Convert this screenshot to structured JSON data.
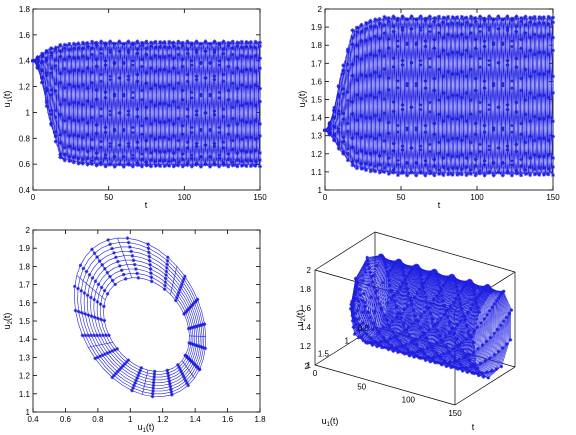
{
  "series_color": "#1f1fe0",
  "marker": "star",
  "chart_data": [
    {
      "type": "line",
      "panel": "top-left",
      "xlabel": "t",
      "ylabel": "u1(t)",
      "ylabel_main": "u",
      "ylabel_sub": "1",
      "ylabel_suffix": "(t)",
      "xlim": [
        0,
        150
      ],
      "ylim": [
        0.4,
        1.8
      ],
      "xticks": [
        "0",
        "50",
        "100",
        "150"
      ],
      "yticks": [
        "0.4",
        "0.6",
        "0.8",
        "1",
        "1.2",
        "1.4",
        "1.6",
        "1.8"
      ],
      "grid": false,
      "x": [
        0,
        10,
        20,
        30,
        40,
        50,
        60,
        70,
        80,
        90,
        100,
        110,
        120,
        130,
        140,
        150
      ],
      "envelope_upper": [
        1.42,
        1.5,
        1.53,
        1.54,
        1.55,
        1.55,
        1.55,
        1.55,
        1.55,
        1.55,
        1.55,
        1.55,
        1.55,
        1.55,
        1.55,
        1.55
      ],
      "envelope_lower": [
        1.4,
        0.7,
        0.63,
        0.6,
        0.59,
        0.58,
        0.58,
        0.58,
        0.58,
        0.58,
        0.58,
        0.58,
        0.58,
        0.58,
        0.58,
        0.58
      ],
      "trajectory_count": 11
    },
    {
      "type": "line",
      "panel": "top-right",
      "xlabel": "t",
      "ylabel": "u2(t)",
      "ylabel_main": "u",
      "ylabel_sub": "2",
      "ylabel_suffix": "(t)",
      "xlim": [
        0,
        150
      ],
      "ylim": [
        1,
        2
      ],
      "xticks": [
        "0",
        "50",
        "100",
        "150"
      ],
      "yticks": [
        "1",
        "1.1",
        "1.2",
        "1.3",
        "1.4",
        "1.5",
        "1.6",
        "1.7",
        "1.8",
        "1.9",
        "2"
      ],
      "grid": false,
      "x": [
        0,
        10,
        20,
        30,
        40,
        50,
        60,
        70,
        80,
        90,
        100,
        110,
        120,
        130,
        140,
        150
      ],
      "envelope_upper": [
        1.33,
        1.82,
        1.9,
        1.94,
        1.96,
        1.96,
        1.96,
        1.96,
        1.96,
        1.96,
        1.96,
        1.96,
        1.96,
        1.96,
        1.96,
        1.96
      ],
      "envelope_lower": [
        1.33,
        1.17,
        1.12,
        1.1,
        1.09,
        1.08,
        1.08,
        1.08,
        1.08,
        1.08,
        1.08,
        1.08,
        1.08,
        1.08,
        1.08,
        1.08
      ],
      "trajectory_count": 11
    },
    {
      "type": "scatter",
      "panel": "bottom-left",
      "xlabel": "u1(t)",
      "xlabel_main": "u",
      "xlabel_sub": "1",
      "xlabel_suffix": "(t)",
      "ylabel": "u2(t)",
      "ylabel_main": "u",
      "ylabel_sub": "2",
      "ylabel_suffix": "(t)",
      "xlim": [
        0.4,
        1.8
      ],
      "ylim": [
        1,
        2
      ],
      "xticks": [
        "0.4",
        "0.6",
        "0.8",
        "1",
        "1.2",
        "1.4",
        "1.6",
        "1.8"
      ],
      "yticks": [
        "1",
        "1.1",
        "1.2",
        "1.3",
        "1.4",
        "1.5",
        "1.6",
        "1.7",
        "1.8",
        "1.9",
        "2"
      ],
      "grid": false,
      "limit_cycle": {
        "u1_min": 0.57,
        "u1_max": 1.55,
        "u2_min": 1.08,
        "u2_max": 1.96
      },
      "inner_cycle": {
        "u1_min": 0.78,
        "u1_max": 1.42,
        "u2_min": 1.22,
        "u2_max": 1.74
      },
      "trajectory_count": 10
    },
    {
      "type": "line",
      "panel": "bottom-right",
      "projection": "3d",
      "xlabel": "t",
      "ylabel": "u1(t)",
      "ylabel_main": "u",
      "ylabel_sub": "1",
      "ylabel_suffix": "(t)",
      "zlabel": "u2(t)",
      "zlabel_main": "u",
      "zlabel_sub": "2",
      "zlabel_suffix": "(t)",
      "xlim": [
        0,
        150
      ],
      "ylim": [
        0.5,
        2
      ],
      "zlim": [
        1,
        2
      ],
      "xticks": [
        "0",
        "50",
        "100",
        "150"
      ],
      "yticks": [
        "0.5",
        "1",
        "1.5",
        "2"
      ],
      "zticks": [
        "1",
        "1.2",
        "1.4",
        "1.6",
        "1.8",
        "2"
      ],
      "grid": false,
      "trajectory_count": 9
    }
  ]
}
